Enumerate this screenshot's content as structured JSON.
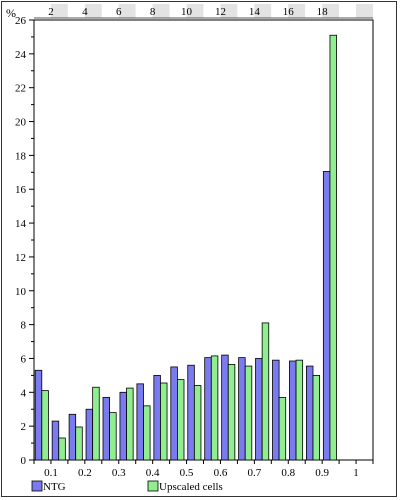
{
  "chart_data": {
    "type": "bar",
    "ylabel": "%",
    "ylim": [
      0,
      26
    ],
    "y_ticks": [
      0,
      2,
      4,
      6,
      8,
      10,
      12,
      14,
      16,
      18,
      20,
      22,
      24,
      26
    ],
    "x_ticks_bottom": [
      "0.1",
      "0.2",
      "0.3",
      "0.4",
      "0.5",
      "0.6",
      "0.7",
      "0.8",
      "0.9",
      "1"
    ],
    "x_ticks_top": [
      "2",
      "4",
      "6",
      "8",
      "10",
      "12",
      "14",
      "16",
      "18"
    ],
    "bins": 20,
    "grid": false,
    "legend_position": "bottom",
    "series": [
      {
        "name": "NTG",
        "color": "#7b7bf0",
        "values": [
          5.3,
          2.3,
          2.7,
          3.0,
          3.7,
          4.0,
          4.5,
          5.0,
          5.5,
          5.6,
          6.05,
          6.2,
          6.05,
          6.0,
          5.9,
          5.85,
          5.55,
          17.05,
          0,
          0
        ]
      },
      {
        "name": "Upscaled cells",
        "color": "#90ee90",
        "values": [
          4.1,
          1.3,
          1.95,
          4.3,
          2.8,
          4.25,
          3.2,
          4.55,
          4.75,
          4.4,
          6.15,
          5.65,
          5.55,
          8.1,
          3.7,
          5.9,
          5.0,
          25.1,
          0,
          0
        ]
      }
    ]
  }
}
